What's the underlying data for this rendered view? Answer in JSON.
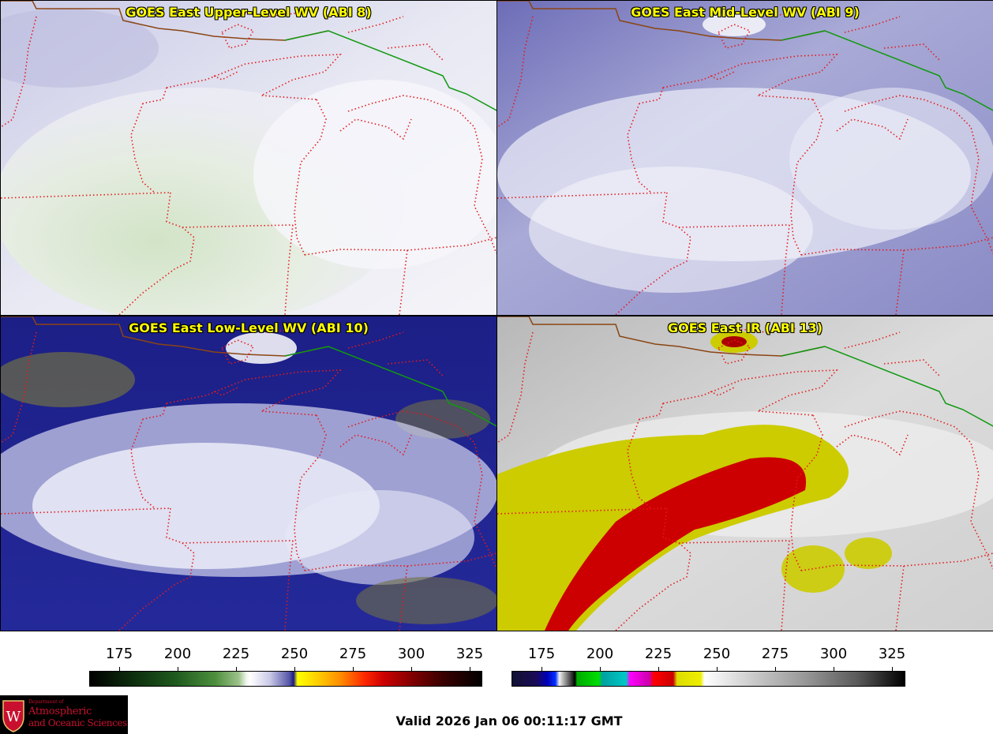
{
  "panels": {
    "top_left": {
      "title": "GOES East Upper-Level WV (ABI 8)"
    },
    "top_right": {
      "title": "GOES East Mid-Level WV (ABI 9)"
    },
    "bottom_left": {
      "title": "GOES East Low-Level WV (ABI 10)"
    },
    "bottom_right": {
      "title": "GOES East IR (ABI 13)"
    }
  },
  "colorbars": {
    "left": {
      "ticks": [
        "175",
        "200",
        "225",
        "250",
        "275",
        "300",
        "325"
      ],
      "colors": [
        "#000000",
        "#1f5a1f",
        "#ffffff",
        "#1a1a80",
        "#ffff00",
        "#ff2a00",
        "#cc0000",
        "#000000"
      ]
    },
    "right": {
      "ticks": [
        "175",
        "200",
        "225",
        "250",
        "275",
        "300",
        "325"
      ],
      "colors": [
        "#0000bb",
        "#00dd00",
        "#00c8c8",
        "#ff00ff",
        "#ff0000",
        "#eeee00",
        "#ffffff",
        "#000000"
      ]
    }
  },
  "logo": {
    "dept": "Department of",
    "line1": "Atmospheric",
    "line2": "and Oceanic Sciences"
  },
  "footer": {
    "valid_text": "Valid 2026 Jan 06 00:11:17 GMT"
  },
  "colors": {
    "state_borders": "#e41a1c",
    "international_border": "#119911",
    "coastline": "#8b4513",
    "title_text": "#ffff00"
  }
}
